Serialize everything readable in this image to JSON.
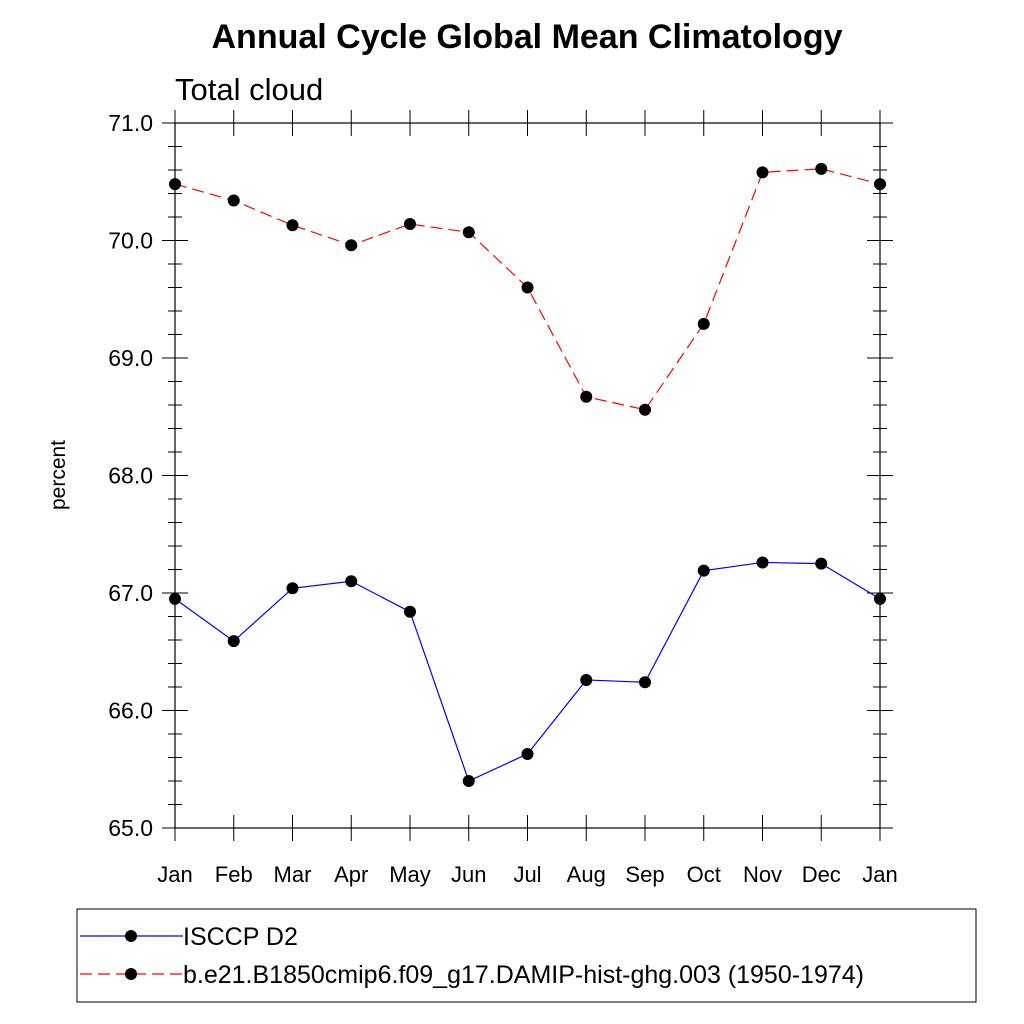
{
  "chart_data": {
    "type": "line",
    "title": "Annual Cycle Global Mean Climatology",
    "subtitle": "Total cloud",
    "xlabel": "",
    "ylabel": "percent",
    "categories": [
      "Jan",
      "Feb",
      "Mar",
      "Apr",
      "May",
      "Jun",
      "Jul",
      "Aug",
      "Sep",
      "Oct",
      "Nov",
      "Dec",
      "Jan"
    ],
    "ylim": [
      65.0,
      71.0
    ],
    "yticks": [
      "65.0",
      "66.0",
      "67.0",
      "68.0",
      "69.0",
      "70.0",
      "71.0"
    ],
    "grid": false,
    "legend_placement": "bottom",
    "series": [
      {
        "name": "ISCCP D2",
        "color": "#0000ff",
        "line_style": "solid",
        "marker": "filled-circle",
        "values": [
          66.95,
          66.59,
          67.04,
          67.1,
          66.84,
          65.4,
          65.63,
          66.26,
          66.24,
          67.19,
          67.26,
          67.25,
          66.95
        ]
      },
      {
        "name": "b.e21.B1850cmip6.f09_g17.DAMIP-hist-ghg.003 (1950-1974)",
        "color": "#ff0000",
        "line_style": "dashed",
        "marker": "filled-circle",
        "values": [
          70.48,
          70.34,
          70.13,
          69.96,
          70.14,
          70.07,
          69.6,
          68.67,
          68.56,
          69.29,
          70.58,
          70.61,
          70.48
        ]
      }
    ]
  }
}
